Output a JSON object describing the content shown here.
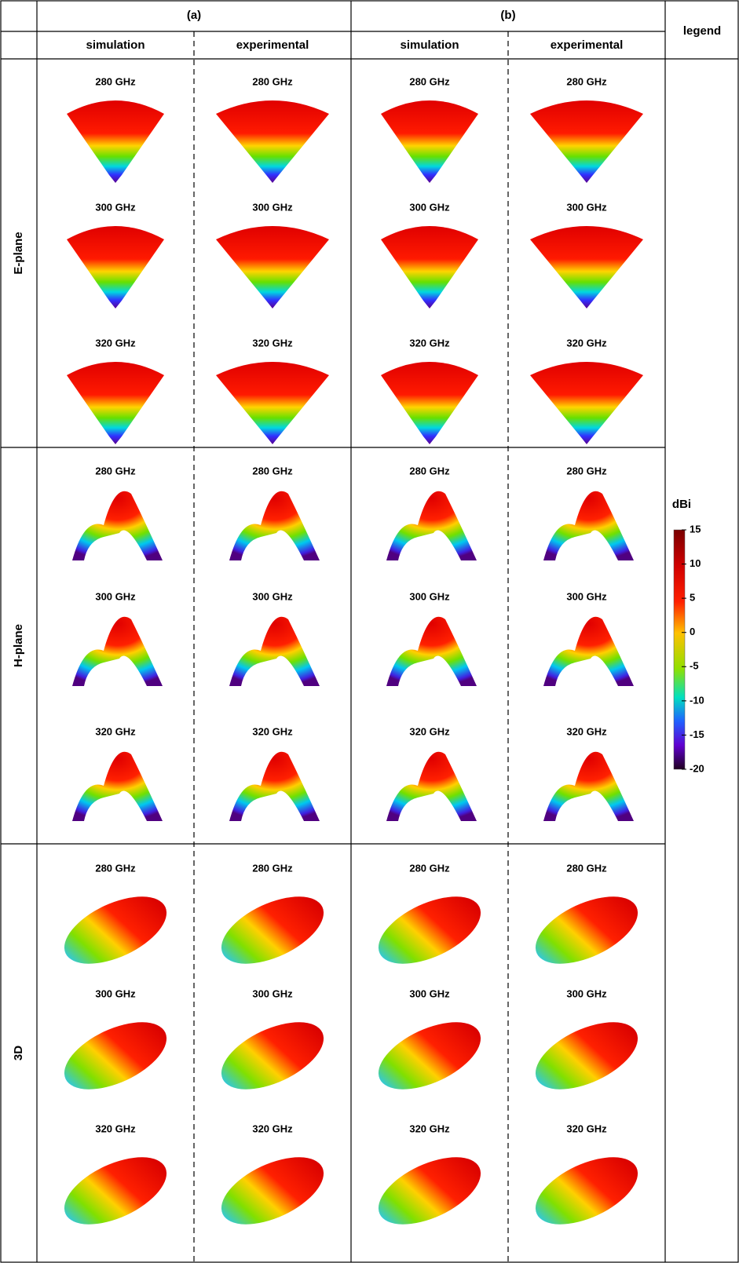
{
  "header": {
    "groups": [
      "(a)",
      "(b)"
    ],
    "columns": [
      "simulation",
      "experimental",
      "simulation",
      "experimental"
    ],
    "legend": "legend"
  },
  "rows": [
    {
      "label": "E-plane",
      "cells": [
        [
          "280 GHz",
          "300 GHz",
          "320 GHz"
        ],
        [
          "280 GHz",
          "300 GHz",
          "320 GHz"
        ],
        [
          "280 GHz",
          "300 GHz",
          "320 GHz"
        ],
        [
          "280 GHz",
          "300 GHz",
          "320 GHz"
        ]
      ]
    },
    {
      "label": "H-plane",
      "cells": [
        [
          "280 GHz",
          "300 GHz",
          "320 GHz"
        ],
        [
          "280 GHz",
          "300 GHz",
          "320 GHz"
        ],
        [
          "280 GHz",
          "300 GHz",
          "320 GHz"
        ],
        [
          "280 GHz",
          "300 GHz",
          "320 GHz"
        ]
      ]
    },
    {
      "label": "3D",
      "cells": [
        [
          "280 GHz",
          "300 GHz",
          "320 GHz"
        ],
        [
          "280 GHz",
          "300 GHz",
          "320 GHz"
        ],
        [
          "280 GHz",
          "300 GHz",
          "320 GHz"
        ],
        [
          "280 GHz",
          "300 GHz",
          "320 GHz"
        ]
      ]
    }
  ],
  "colorbar": {
    "unit": "dBi",
    "ticks": [
      15,
      10,
      5,
      0,
      -5,
      -10,
      -15,
      -20
    ]
  }
}
